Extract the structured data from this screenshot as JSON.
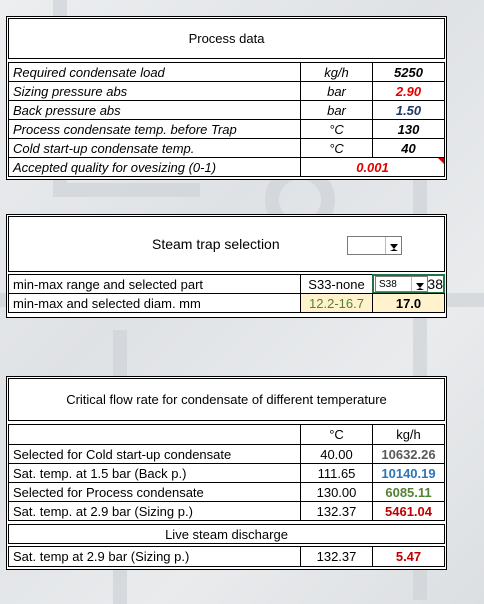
{
  "process_data": {
    "title": "Process data",
    "rows": [
      [
        "Required condensate load",
        "kg/h",
        "5250"
      ],
      [
        "Sizing pressure abs",
        "bar",
        "2.90"
      ],
      [
        "Back pressure abs",
        "bar",
        "1.50"
      ],
      [
        "Process condensate temp. before Trap",
        "°C",
        "130"
      ],
      [
        "Cold start-up condensate temp.",
        "°C",
        "40"
      ]
    ],
    "last_row": [
      "Accepted quality for ovesizing (0-1)",
      "0.001"
    ]
  },
  "steam_trap_selection": {
    "title": "Steam trap selection",
    "rows": [
      [
        "min-max range and selected part",
        "S33-none",
        "S38",
        "38"
      ],
      [
        "min-max and selected diam. mm",
        "12.2-16.7",
        "17.0"
      ]
    ]
  },
  "critical_flow": {
    "title": "Critical flow rate for condensate of different temperature",
    "header": [
      "°C",
      "kg/h"
    ],
    "rows": [
      [
        "Selected for Cold start-up condensate",
        "40.00",
        "10632.26"
      ],
      [
        "Sat. temp. at 1.5 bar (Back p.)",
        "111.65",
        "10140.19"
      ],
      [
        "Selected for Process condensate",
        "130.00",
        "6085.11"
      ],
      [
        "Sat. temp. at 2.9 bar (Sizing p.)",
        "132.37",
        "5461.04"
      ]
    ],
    "subheading": "Live steam discharge",
    "last_row": [
      "Sat. temp at 2.9 bar (Sizing p.)",
      "132.37",
      "5.47"
    ]
  }
}
